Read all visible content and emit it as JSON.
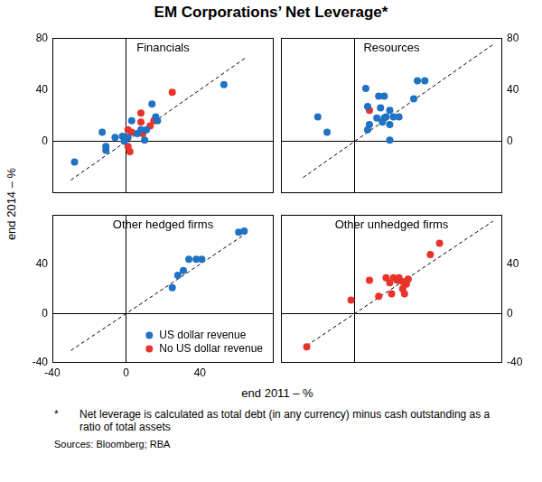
{
  "chart_data": {
    "type": "scatter",
    "title": "EM Corporations’ Net Leverage*",
    "x_label": "end 2011 – %",
    "y_label": "end 2014 – %",
    "footnote": {
      "marker": "*",
      "text": "Net leverage is calculated as total debt (in any currency) minus cash outstanding as a ratio of total assets"
    },
    "source": "Sources: Bloomberg; RBA",
    "panels": [
      {
        "title": "Financials",
        "xlim": [
          -40,
          80
        ],
        "ylim": [
          -40,
          80
        ],
        "xticks": [
          -40,
          0,
          40,
          80
        ],
        "yticks": [
          0,
          40,
          80
        ],
        "tick_labels": "y",
        "grid": "zero",
        "series": [
          {
            "name": "US dollar revenue",
            "color": "#1f72c4",
            "marker": "circle",
            "x": [
              -28,
              -13,
              -11,
              -11,
              -6,
              -1,
              -2,
              1,
              3,
              6,
              8,
              11,
              10,
              14,
              16,
              17,
              53
            ],
            "values": [
              -16,
              7,
              -4,
              -7,
              3,
              0,
              4,
              3,
              16,
              6,
              9,
              9,
              1,
              29,
              19,
              16,
              44
            ]
          },
          {
            "name": "No US dollar revenue",
            "color": "#e8322a",
            "marker": "circle",
            "x": [
              1,
              1,
              2,
              3,
              8,
              8,
              9,
              13,
              15,
              25
            ],
            "values": [
              9,
              -4,
              -8,
              7,
              22,
              15,
              6,
              12,
              16,
              38
            ]
          },
          {
            "color": "#000000",
            "marker": "none",
            "line_style": "dashed",
            "x": [
              -30,
              65
            ],
            "values": [
              -30,
              65
            ]
          }
        ]
      },
      {
        "title": "Resources",
        "xlim": [
          -40,
          80
        ],
        "ylim": [
          -40,
          80
        ],
        "xticks": [
          -40,
          0,
          40,
          80
        ],
        "yticks": [
          0,
          40,
          80
        ],
        "tick_labels": "y",
        "grid": "zero",
        "series": [
          {
            "name": "US dollar revenue",
            "color": "#1f72c4",
            "marker": "circle",
            "x": [
              -20,
              -15,
              6,
              7,
              7,
              8,
              13,
              14,
              15,
              16,
              16,
              17,
              19,
              19,
              19,
              21,
              24,
              32,
              34,
              38,
              12
            ],
            "values": [
              19,
              7,
              41,
              27,
              9,
              13,
              35,
              26,
              15,
              18,
              35,
              19,
              24,
              13,
              1,
              19,
              19,
              33,
              47,
              47,
              18
            ]
          },
          {
            "name": "No US dollar revenue",
            "color": "#e8322a",
            "marker": "circle",
            "x": [
              8
            ],
            "values": [
              24
            ]
          },
          {
            "color": "#000000",
            "marker": "none",
            "line_style": "dashed",
            "x": [
              -28,
              75
            ],
            "values": [
              -28,
              75
            ]
          }
        ]
      },
      {
        "title": "Other hedged firms",
        "xlim": [
          -40,
          80
        ],
        "ylim": [
          -40,
          80
        ],
        "xticks": [
          -40,
          0,
          40
        ],
        "yticks": [
          -40,
          0,
          40
        ],
        "tick_labels": true,
        "grid": "zero",
        "legend": "lower right",
        "series": [
          {
            "name": "US dollar revenue",
            "color": "#1f72c4",
            "marker": "circle",
            "x": [
              25,
              28,
              31,
              34,
              38,
              41,
              61,
              64
            ],
            "values": [
              21,
              31,
              35,
              44,
              44,
              44,
              66,
              67
            ]
          },
          {
            "name": "No US dollar revenue",
            "color": "#e8322a",
            "marker": "circle",
            "x": [],
            "values": []
          },
          {
            "color": "#000000",
            "marker": "none",
            "line_style": "dashed",
            "x": [
              -30,
              65
            ],
            "values": [
              -30,
              65
            ]
          }
        ]
      },
      {
        "title": "Other unhedged firms",
        "xlim": [
          -40,
          80
        ],
        "ylim": [
          -40,
          80
        ],
        "xticks": [
          0,
          40
        ],
        "yticks": [
          -40,
          0,
          40
        ],
        "tick_labels": "y",
        "grid": "zero",
        "series": [
          {
            "name": "No US dollar revenue",
            "color": "#e8322a",
            "marker": "circle",
            "x": [
              -26,
              -2,
              8,
              13,
              17,
              19,
              21,
              20,
              23,
              24,
              26,
              28,
              26,
              27,
              29,
              41,
              46
            ],
            "values": [
              -27,
              11,
              27,
              14,
              29,
              25,
              29,
              16,
              27,
              29,
              26,
              24,
              20,
              16,
              28,
              48,
              57
            ]
          },
          {
            "color": "#000000",
            "marker": "none",
            "line_style": "dashed",
            "x": [
              -26,
              75
            ],
            "values": [
              -26,
              75
            ]
          }
        ]
      }
    ]
  }
}
